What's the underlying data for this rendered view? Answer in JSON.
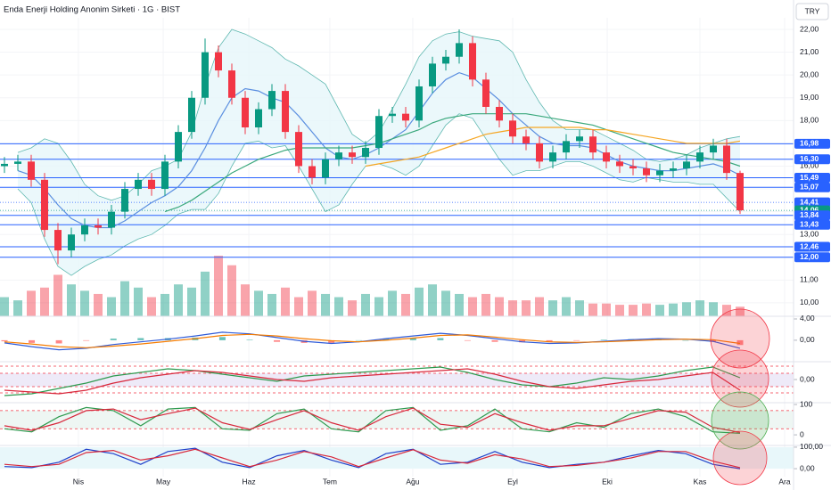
{
  "chart_data": {
    "type": "candlestick",
    "title": "Enda Enerji Holding Anonim Sirketi · 1G · BIST",
    "currency": "TRY",
    "up_color": "#089981",
    "down_color": "#f23645",
    "ylim": [
      9.41,
      22.51
    ],
    "yticks": [
      {
        "value": 10,
        "label": "10,00"
      },
      {
        "value": 11,
        "label": "11,00"
      },
      {
        "value": 12,
        "label": "12,00"
      },
      {
        "value": 13,
        "label": "13,00"
      },
      {
        "value": 14,
        "label": "14,00"
      },
      {
        "value": 15,
        "label": "15,00"
      },
      {
        "value": 16,
        "label": "16,00"
      },
      {
        "value": 17,
        "label": "17,00"
      },
      {
        "value": 18,
        "label": "18,00"
      },
      {
        "value": 19,
        "label": "19,00"
      },
      {
        "value": 20,
        "label": "20,00"
      },
      {
        "value": 21,
        "label": "21,00"
      },
      {
        "value": 22,
        "label": "22,00"
      }
    ],
    "xticks": [
      {
        "value": 5.53,
        "label": "Nis"
      },
      {
        "value": 11.87,
        "label": "May"
      },
      {
        "value": 18.27,
        "label": "Haz"
      },
      {
        "value": 24.33,
        "label": "Tem"
      },
      {
        "value": 30.53,
        "label": "Ağu"
      },
      {
        "value": 38.0,
        "label": "Eyl"
      },
      {
        "value": 45.07,
        "label": "Eki"
      },
      {
        "value": 52.0,
        "label": "Kas"
      },
      {
        "value": 58.33,
        "label": "Ara"
      }
    ],
    "open": [
      16.0,
      16.1,
      16.2,
      15.4,
      13.2,
      12.3,
      13.0,
      13.4,
      13.3,
      14.0,
      15.0,
      15.4,
      15.0,
      16.2,
      17.5,
      19.0,
      21.0,
      20.2,
      19.0,
      17.7,
      18.5,
      19.3,
      17.5,
      16.0,
      15.5,
      16.3,
      16.6,
      16.4,
      16.8,
      18.2,
      18.3,
      18.0,
      19.5,
      20.5,
      20.8,
      21.4,
      19.8,
      18.6,
      18.0,
      17.3,
      17.0,
      16.2,
      16.6,
      17.1,
      17.3,
      16.6,
      16.2,
      16.0,
      15.9,
      15.6,
      15.8,
      15.9,
      16.2,
      16.6,
      16.9,
      15.7
    ],
    "high": [
      16.4,
      16.5,
      16.5,
      15.7,
      13.5,
      13.3,
      13.7,
      13.7,
      14.3,
      15.3,
      15.7,
      15.7,
      16.5,
      17.8,
      19.3,
      21.6,
      21.3,
      20.5,
      19.3,
      18.8,
      19.6,
      19.6,
      17.8,
      16.3,
      16.6,
      16.9,
      16.9,
      17.1,
      18.5,
      18.6,
      18.6,
      19.8,
      20.8,
      21.1,
      22.0,
      21.7,
      20.1,
      18.9,
      18.3,
      17.6,
      17.3,
      16.9,
      17.4,
      17.6,
      17.6,
      16.9,
      16.5,
      16.3,
      16.2,
      16.1,
      16.2,
      16.5,
      16.9,
      17.2,
      17.2,
      15.8
    ],
    "low": [
      15.7,
      15.8,
      15.1,
      12.9,
      11.7,
      12.0,
      12.7,
      13.0,
      13.0,
      13.7,
      14.7,
      14.7,
      14.7,
      15.9,
      17.2,
      18.7,
      19.9,
      18.7,
      17.4,
      17.4,
      18.2,
      17.2,
      15.7,
      15.2,
      15.2,
      16.0,
      16.1,
      16.1,
      16.5,
      17.9,
      17.7,
      17.7,
      19.2,
      20.2,
      20.5,
      19.5,
      18.3,
      17.7,
      17.0,
      16.7,
      15.9,
      15.9,
      16.3,
      16.8,
      16.3,
      15.9,
      15.7,
      15.6,
      15.3,
      15.3,
      15.5,
      15.6,
      15.9,
      16.3,
      15.4,
      13.9
    ],
    "close": [
      16.1,
      16.2,
      15.4,
      13.2,
      12.3,
      13.0,
      13.4,
      13.3,
      14.0,
      15.0,
      15.4,
      15.0,
      16.2,
      17.5,
      19.0,
      21.0,
      20.2,
      19.0,
      17.7,
      18.5,
      19.3,
      17.5,
      16.0,
      15.5,
      16.3,
      16.6,
      16.4,
      16.8,
      18.2,
      18.3,
      18.0,
      19.5,
      20.5,
      20.8,
      21.4,
      19.8,
      18.6,
      18.0,
      17.3,
      17.0,
      16.2,
      16.6,
      17.1,
      17.3,
      16.6,
      16.2,
      16.0,
      15.9,
      15.6,
      15.8,
      15.9,
      16.2,
      16.6,
      16.9,
      15.7,
      14.06
    ],
    "volume": [
      30,
      25,
      40,
      45,
      65,
      50,
      40,
      35,
      30,
      55,
      45,
      30,
      35,
      50,
      45,
      70,
      95,
      80,
      50,
      40,
      35,
      45,
      30,
      40,
      35,
      30,
      25,
      35,
      30,
      40,
      35,
      45,
      50,
      40,
      35,
      30,
      35,
      30,
      25,
      25,
      30,
      25,
      30,
      25,
      20,
      20,
      18,
      18,
      20,
      18,
      20,
      22,
      25,
      22,
      18,
      15
    ],
    "bands": {
      "color": "#5fb8b0",
      "fill": "#e6f6fa",
      "upper": [
        null,
        16.6,
        16.8,
        17.2,
        17.0,
        16.2,
        15.2,
        14.7,
        14.5,
        14.7,
        15.2,
        15.8,
        16.0,
        16.3,
        17.5,
        19.5,
        21.2,
        22.0,
        21.8,
        21.5,
        21.2,
        20.7,
        20.4,
        20.0,
        19.6,
        18.5,
        17.4,
        17.0,
        17.5,
        18.5,
        19.6,
        20.8,
        21.5,
        21.8,
        21.9,
        21.7,
        21.6,
        21.5,
        21.0,
        19.8,
        18.8,
        18.0,
        17.6,
        17.6,
        17.6,
        17.3,
        17.0,
        16.7,
        16.3,
        16.2,
        16.3,
        16.5,
        16.8,
        17.0,
        17.2,
        17.3
      ],
      "lower": [
        null,
        15.0,
        14.4,
        12.8,
        11.6,
        11.2,
        11.6,
        11.9,
        12.1,
        12.5,
        12.8,
        13.0,
        13.4,
        13.9,
        14.1,
        14.1,
        14.8,
        16.0,
        17.0,
        17.1,
        16.8,
        16.9,
        16.0,
        15.0,
        14.0,
        14.3,
        15.2,
        16.0,
        16.1,
        15.9,
        15.6,
        16.0,
        16.9,
        17.8,
        18.3,
        18.1,
        17.2,
        16.3,
        15.6,
        15.8,
        15.8,
        16.0,
        16.2,
        16.2,
        16.0,
        15.7,
        15.4,
        15.3,
        15.5,
        15.4,
        15.3,
        15.3,
        15.2,
        15.2,
        14.6,
        14.0
      ]
    },
    "averages": [
      {
        "color": "#5b8fe0",
        "values": [
          null,
          15.8,
          15.6,
          15.0,
          14.3,
          13.7,
          13.4,
          13.3,
          13.3,
          13.6,
          14.0,
          14.4,
          14.7,
          15.1,
          15.8,
          16.8,
          18.0,
          19.0,
          19.4,
          19.3,
          19.0,
          18.8,
          18.2,
          17.5,
          16.8,
          16.4,
          16.3,
          16.5,
          16.8,
          17.2,
          17.6,
          18.4,
          19.2,
          19.8,
          20.1,
          19.9,
          19.4,
          18.9,
          18.3,
          17.8,
          17.3,
          17.0,
          16.9,
          16.9,
          16.8,
          16.5,
          16.2,
          16.0,
          15.9,
          15.8,
          15.8,
          15.9,
          16.0,
          16.1,
          15.9,
          15.6
        ]
      },
      {
        "color": "#3aa87c",
        "values": [
          null,
          null,
          null,
          null,
          null,
          null,
          null,
          null,
          null,
          null,
          null,
          null,
          14.0,
          14.2,
          14.5,
          14.9,
          15.3,
          15.7,
          16.0,
          16.3,
          16.5,
          16.7,
          16.8,
          16.8,
          16.8,
          16.8,
          16.8,
          16.9,
          17.0,
          17.2,
          17.4,
          17.6,
          17.9,
          18.1,
          18.2,
          18.3,
          18.3,
          18.3,
          18.3,
          18.3,
          18.2,
          18.1,
          18.0,
          17.9,
          17.8,
          17.6,
          17.4,
          17.2,
          17.0,
          16.8,
          16.6,
          16.5,
          16.4,
          16.3,
          16.2,
          16.0
        ]
      },
      {
        "color": "#f5a623",
        "values": [
          null,
          null,
          null,
          null,
          null,
          null,
          null,
          null,
          null,
          null,
          null,
          null,
          null,
          null,
          null,
          null,
          null,
          null,
          null,
          null,
          null,
          null,
          null,
          null,
          null,
          null,
          null,
          16.0,
          16.1,
          16.2,
          16.3,
          16.4,
          16.6,
          16.8,
          17.0,
          17.2,
          17.4,
          17.5,
          17.6,
          17.7,
          17.7,
          17.7,
          17.7,
          17.7,
          17.6,
          17.6,
          17.5,
          17.4,
          17.3,
          17.2,
          17.1,
          17.0,
          17.0,
          17.0,
          17.0,
          17.1
        ]
      }
    ],
    "levels": [
      {
        "value": 16.98,
        "label": "16,98",
        "color": "#2962ff",
        "style": "solid"
      },
      {
        "value": 16.3,
        "label": "16,30",
        "color": "#2962ff",
        "style": "solid"
      },
      {
        "value": 15.49,
        "label": "15,49",
        "color": "#2962ff",
        "style": "solid"
      },
      {
        "value": 15.07,
        "label": "15,07",
        "color": "#2962ff",
        "style": "solid"
      },
      {
        "value": 14.41,
        "label": "14,41",
        "color": "#2962ff",
        "style": "dotted"
      },
      {
        "value": 14.06,
        "label": "14,06",
        "color": "#089981",
        "style": "dotted"
      },
      {
        "value": 13.84,
        "label": "13,84",
        "color": "#2962ff",
        "style": "solid"
      },
      {
        "value": 13.43,
        "label": "13,43",
        "color": "#2962ff",
        "style": "solid"
      },
      {
        "value": 12.46,
        "label": "12,46",
        "color": "#2962ff",
        "style": "solid"
      },
      {
        "value": 12.0,
        "label": "12,00",
        "color": "#2962ff",
        "style": "solid"
      }
    ],
    "panes": [
      {
        "ylim": [
          -3.7,
          4.5
        ],
        "yticks": [
          {
            "value": 4,
            "label": "4,00"
          },
          {
            "value": 0,
            "label": "0,00"
          }
        ],
        "histogram": [
          -0.2,
          -0.5,
          -0.6,
          -0.1,
          0.3,
          0.4,
          0.4,
          0.5,
          0.6,
          0.1,
          -0.3,
          -0.5,
          -0.5,
          0,
          0.3,
          0.4,
          0.4,
          -0.1,
          -0.3,
          -0.4,
          -0.3,
          -0.1,
          0.1,
          0.2,
          0.2,
          0,
          -0.3,
          -0.9
        ],
        "series": [
          {
            "color": "#2f5bd8",
            "values": [
              -0.5,
              -1.2,
              -1.8,
              -1.5,
              -0.8,
              -0.3,
              0.2,
              0.8,
              1.5,
              1.2,
              0.5,
              -0.2,
              -0.6,
              -0.3,
              0.3,
              0.8,
              1.3,
              0.9,
              0.3,
              -0.3,
              -0.6,
              -0.5,
              -0.2,
              0.1,
              0.3,
              0.2,
              -0.2,
              -1.5
            ]
          },
          {
            "color": "#f57c00",
            "values": [
              -0.3,
              -0.7,
              -1.2,
              -1.4,
              -1.1,
              -0.7,
              -0.2,
              0.3,
              0.9,
              1.1,
              0.8,
              0.3,
              -0.1,
              -0.3,
              0.0,
              0.4,
              0.9,
              1.0,
              0.6,
              0.1,
              -0.3,
              -0.4,
              -0.3,
              -0.1,
              0.1,
              0.2,
              0.1,
              -0.6
            ]
          }
        ]
      },
      {
        "ylim": [
          -1.2,
          1.0
        ],
        "yticks": [
          {
            "value": 0,
            "label": "0,00"
          }
        ],
        "guides": [
          0.75,
          0.35,
          -0.4,
          -0.75
        ],
        "band": [
          0.35,
          -0.4
        ],
        "band_color": "#eeeaf8",
        "series": [
          {
            "color": "#2e9a4f",
            "values": [
              -0.9,
              -0.8,
              -0.5,
              -0.2,
              0.2,
              0.4,
              0.6,
              0.5,
              0.3,
              0.1,
              -0.1,
              0.2,
              0.3,
              0.4,
              0.5,
              0.6,
              0.7,
              0.4,
              0.0,
              -0.3,
              -0.4,
              -0.2,
              0.1,
              0.0,
              0.2,
              0.5,
              0.7,
              0.1
            ]
          },
          {
            "color": "#d8283c",
            "values": [
              -0.6,
              -0.7,
              -0.8,
              -0.6,
              -0.2,
              0.1,
              0.3,
              0.5,
              0.4,
              0.2,
              0.0,
              -0.1,
              0.1,
              0.2,
              0.3,
              0.4,
              0.5,
              0.6,
              0.3,
              -0.1,
              -0.4,
              -0.5,
              -0.3,
              -0.1,
              0.0,
              0.2,
              0.4,
              -0.6
            ]
          }
        ]
      },
      {
        "ylim": [
          -35,
          106
        ],
        "yticks": [
          100,
          0
        ],
        "guides": [
          80,
          20
        ],
        "band": [
          80,
          20
        ],
        "band_color": "#eef6f3",
        "series": [
          {
            "color": "#2e9a4f",
            "values": [
              20,
              10,
              60,
              90,
              80,
              30,
              85,
              90,
              20,
              15,
              70,
              85,
              20,
              10,
              80,
              90,
              15,
              30,
              85,
              20,
              10,
              40,
              25,
              70,
              85,
              60,
              10,
              5
            ]
          },
          {
            "color": "#d8283c",
            "values": [
              30,
              15,
              40,
              80,
              85,
              50,
              70,
              88,
              40,
              18,
              50,
              80,
              40,
              15,
              60,
              88,
              35,
              25,
              70,
              40,
              15,
              30,
              30,
              55,
              80,
              75,
              25,
              8
            ]
          }
        ]
      },
      {
        "ylim": [
          -37,
          108
        ],
        "yticks": [
          {
            "value": 100,
            "label": "100,00"
          },
          {
            "value": 0,
            "label": "0,00"
          }
        ],
        "band": [
          100,
          0
        ],
        "band_color": "#e8f7fa",
        "series": [
          {
            "color": "#1f3fc9",
            "values": [
              10,
              5,
              30,
              90,
              70,
              20,
              80,
              95,
              30,
              5,
              60,
              85,
              40,
              5,
              70,
              90,
              20,
              30,
              80,
              30,
              5,
              20,
              30,
              60,
              85,
              70,
              20,
              0
            ]
          },
          {
            "color": "#d8283c",
            "values": [
              20,
              10,
              20,
              75,
              85,
              40,
              60,
              90,
              50,
              10,
              40,
              80,
              55,
              10,
              50,
              88,
              40,
              25,
              65,
              45,
              10,
              15,
              30,
              50,
              80,
              80,
              35,
              5
            ]
          }
        ]
      }
    ]
  }
}
